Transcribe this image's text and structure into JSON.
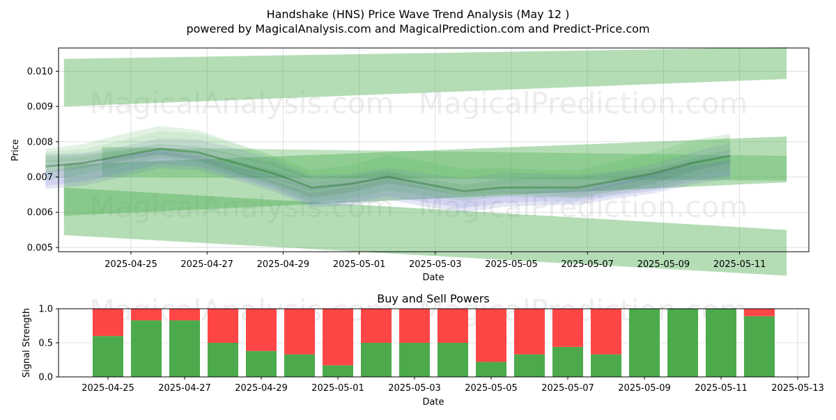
{
  "title_line1": "Handshake (HNS) Price Wave Trend Analysis (May 12 )",
  "title_line2": "powered by MagicalAnalysis.com and MagicalPrediction.com and Predict-Price.com",
  "watermarks": [
    "MagicalAnalysis.com",
    "MagicalPrediction.com"
  ],
  "colors": {
    "band": "#4caf50",
    "wave_blue": "#6a6adf",
    "buy": "#4caa4c",
    "sell": "#ff4646"
  },
  "chart_data": [
    {
      "type": "area",
      "name": "price-wave-chart",
      "xlabel": "Date",
      "ylabel": "Price",
      "ylim": [
        0.00488,
        0.01066
      ],
      "x_ticks": [
        "2025-04-25",
        "2025-04-27",
        "2025-04-29",
        "2025-05-01",
        "2025-05-03",
        "2025-05-05",
        "2025-05-07",
        "2025-05-09",
        "2025-05-11"
      ],
      "y_ticks": [
        "0.005",
        "0.006",
        "0.007",
        "0.008",
        "0.009",
        "0.010"
      ],
      "grid": true,
      "dates": [
        "2025-04-24",
        "2025-04-25",
        "2025-04-26",
        "2025-04-27",
        "2025-04-28",
        "2025-04-29",
        "2025-04-30",
        "2025-05-01",
        "2025-05-02",
        "2025-05-03",
        "2025-05-04",
        "2025-05-05",
        "2025-05-06",
        "2025-05-07",
        "2025-05-08",
        "2025-05-09",
        "2025-05-10",
        "2025-05-11",
        "2025-05-12"
      ],
      "wave_center": [
        0.0073,
        0.0074,
        0.0076,
        0.0078,
        0.0077,
        0.0074,
        0.0071,
        0.0067,
        0.0068,
        0.007,
        0.0068,
        0.0066,
        0.0067,
        0.0067,
        0.0067,
        0.0069,
        0.0071,
        0.0074,
        0.0076
      ],
      "trend_bands": [
        {
          "x": [
            "2025-04-23",
            "2025-05-12"
          ],
          "upper": [
            0.01035,
            0.01068
          ],
          "lower": [
            0.009,
            0.00978
          ]
        },
        {
          "x": [
            "2025-04-23",
            "2025-05-12"
          ],
          "upper": [
            0.00735,
            0.00815
          ],
          "lower": [
            0.0059,
            0.00685
          ]
        },
        {
          "x": [
            "2025-04-23",
            "2025-05-12"
          ],
          "upper": [
            0.0067,
            0.0055
          ],
          "lower": [
            0.00535,
            0.0042
          ]
        },
        {
          "x": [
            "2025-04-24",
            "2025-05-12"
          ],
          "upper": [
            0.00785,
            0.0076
          ],
          "lower": [
            0.007,
            0.0069
          ]
        }
      ]
    },
    {
      "type": "bar",
      "name": "buy-sell-powers-chart",
      "title": "Buy and Sell Powers",
      "xlabel": "Date",
      "ylabel": "Signal Strength",
      "ylim": [
        0,
        1.0
      ],
      "x_ticks": [
        "2025-04-25",
        "2025-04-27",
        "2025-04-29",
        "2025-05-01",
        "2025-05-03",
        "2025-05-05",
        "2025-05-07",
        "2025-05-09",
        "2025-05-11",
        "2025-05-13"
      ],
      "y_ticks": [
        "0.0",
        "0.5",
        "1.0"
      ],
      "grid": true,
      "categories": [
        "2025-04-25",
        "2025-04-26",
        "2025-04-27",
        "2025-04-28",
        "2025-04-29",
        "2025-04-30",
        "2025-05-01",
        "2025-05-02",
        "2025-05-03",
        "2025-05-04",
        "2025-05-05",
        "2025-05-06",
        "2025-05-07",
        "2025-05-08",
        "2025-05-09",
        "2025-05-10",
        "2025-05-11",
        "2025-05-12"
      ],
      "series": [
        {
          "values": [
            0.6,
            0.83,
            0.83,
            0.5,
            0.38,
            0.33,
            0.17,
            0.5,
            0.5,
            0.5,
            0.22,
            0.33,
            0.44,
            0.33,
            1.0,
            1.0,
            1.0,
            0.89
          ]
        },
        {
          "values": [
            0.4,
            0.17,
            0.17,
            0.5,
            0.62,
            0.67,
            0.83,
            0.5,
            0.5,
            0.5,
            0.78,
            0.67,
            0.56,
            0.67,
            0.0,
            0.0,
            0.0,
            0.11
          ]
        }
      ]
    }
  ]
}
